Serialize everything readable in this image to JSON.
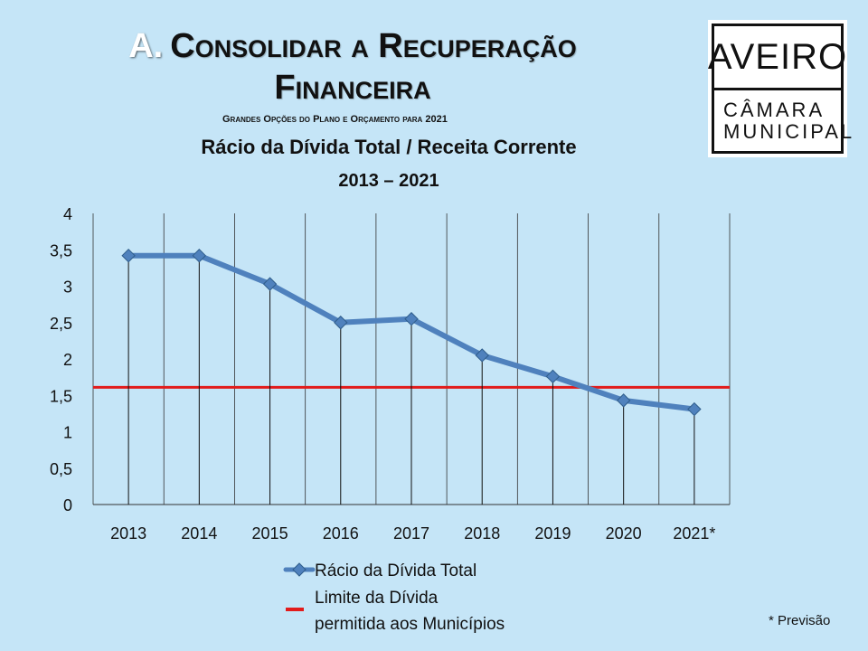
{
  "slide": {
    "title_prefix": "A.",
    "title_line1": "Consolidar a Recuperação",
    "title_line2": "Financeira",
    "subtitle": "Grandes Opções do Plano e Orçamento para 2021",
    "footnote": "* Previsão"
  },
  "logo": {
    "top": "AVEIRO",
    "line1": "CÂMARA",
    "line2": "MUNICIPAL"
  },
  "colors": {
    "background": "#c5e5f7",
    "series": "#4f81bd",
    "limit": "#e21b1b"
  },
  "chart_data": {
    "type": "line",
    "title": "Rácio da Dívida Total / Receita Corrente",
    "subtitle": "2013 – 2021",
    "categories": [
      "2013",
      "2014",
      "2015",
      "2016",
      "2017",
      "2018",
      "2019",
      "2020",
      "2021*"
    ],
    "series": [
      {
        "name": "Rácio da Dívida Total",
        "values": [
          3.42,
          3.42,
          3.03,
          2.5,
          2.55,
          2.05,
          1.76,
          1.43,
          1.31
        ]
      },
      {
        "name": "Limite da Dívida permitida aos Municípios",
        "values": [
          1.61,
          1.61,
          1.61,
          1.61,
          1.61,
          1.61,
          1.61,
          1.61,
          1.61
        ]
      }
    ],
    "y_ticks": [
      "0",
      "0,5",
      "1",
      "1,5",
      "2",
      "2,5",
      "3",
      "3,5",
      "4"
    ],
    "ylim": [
      0,
      4
    ],
    "xlabel": "",
    "ylabel": "",
    "legend_position": "bottom",
    "legend": [
      "Rácio da Dívida Total",
      "Limite da Dívida",
      "permitida aos Municípios"
    ]
  }
}
